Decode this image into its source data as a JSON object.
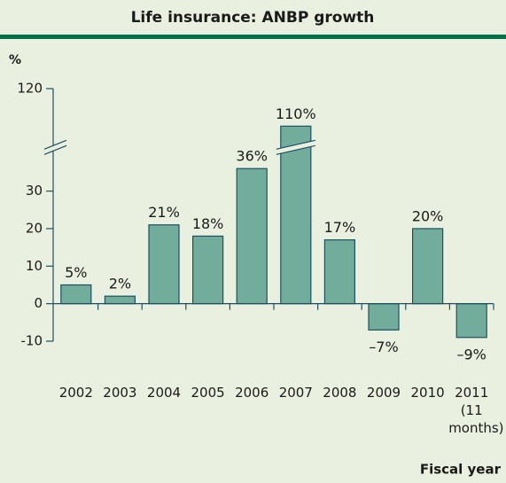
{
  "chart_data": {
    "type": "bar",
    "title": "Life insurance: ANBP growth",
    "y_label": "%",
    "x_label": "Fiscal year",
    "categories": [
      "2002",
      "2003",
      "2004",
      "2005",
      "2006",
      "2007",
      "2008",
      "2009",
      "2010",
      "2011 (11 months)"
    ],
    "values": [
      5,
      2,
      21,
      18,
      36,
      110,
      17,
      -7,
      20,
      -9
    ],
    "value_labels": [
      "5%",
      "2%",
      "21%",
      "18%",
      "36%",
      "110%",
      "17%",
      "–7%",
      "20%",
      "–9%"
    ],
    "color": "#72ad9b",
    "ylim": [
      -10,
      120
    ],
    "yticks": [
      -10,
      0,
      10,
      20,
      30,
      120
    ],
    "axis_break": [
      40,
      106
    ]
  }
}
